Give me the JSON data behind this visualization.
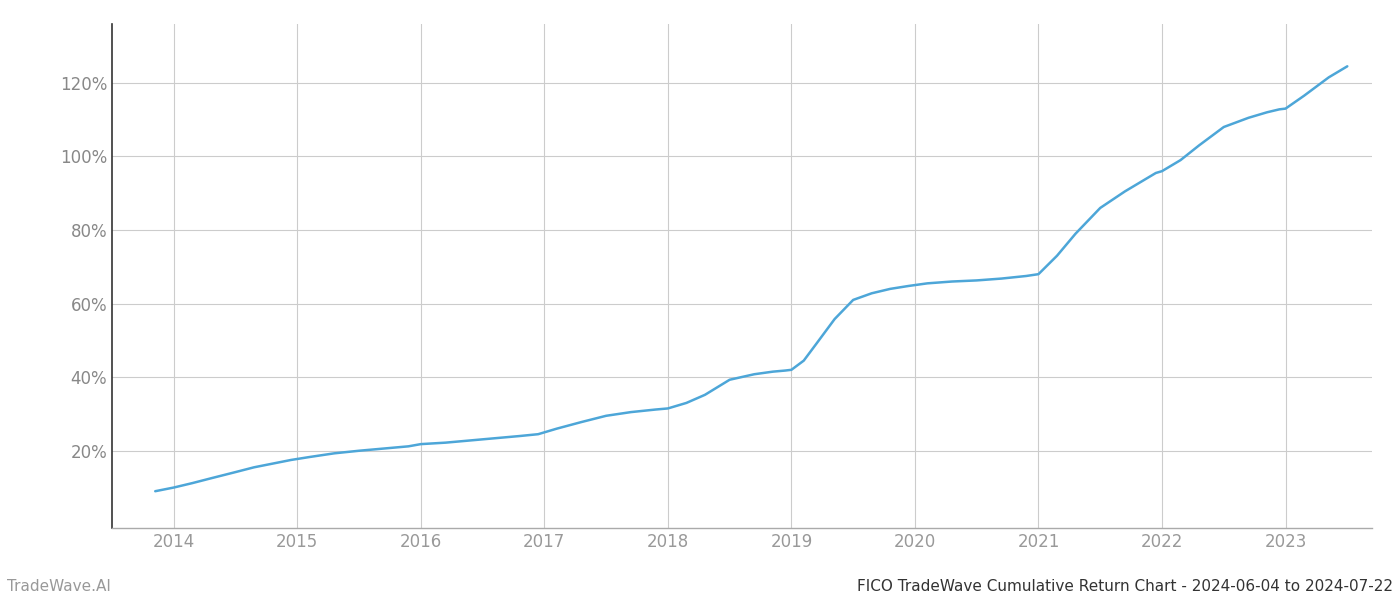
{
  "title": "FICO TradeWave Cumulative Return Chart - 2024-06-04 to 2024-07-22",
  "watermark": "TradeWave.AI",
  "line_color": "#4da6d8",
  "background_color": "#ffffff",
  "grid_color": "#cccccc",
  "x_tick_color": "#999999",
  "y_tick_color": "#888888",
  "xlabel": "",
  "ylabel": "",
  "xlim": [
    2013.5,
    2023.7
  ],
  "ylim": [
    -0.01,
    1.36
  ],
  "x_ticks": [
    2014,
    2015,
    2016,
    2017,
    2018,
    2019,
    2020,
    2021,
    2022,
    2023
  ],
  "y_ticks": [
    0.2,
    0.4,
    0.6,
    0.8,
    1.0,
    1.2
  ],
  "data_x": [
    2013.85,
    2014.0,
    2014.15,
    2014.3,
    2014.5,
    2014.65,
    2014.8,
    2014.95,
    2015.1,
    2015.3,
    2015.5,
    2015.7,
    2015.9,
    2016.0,
    2016.2,
    2016.4,
    2016.6,
    2016.8,
    2016.95,
    2017.1,
    2017.3,
    2017.5,
    2017.7,
    2017.9,
    2018.0,
    2018.15,
    2018.3,
    2018.5,
    2018.7,
    2018.85,
    2018.95,
    2019.0,
    2019.1,
    2019.2,
    2019.35,
    2019.5,
    2019.65,
    2019.8,
    2019.95,
    2020.1,
    2020.3,
    2020.5,
    2020.7,
    2020.9,
    2021.0,
    2021.15,
    2021.3,
    2021.5,
    2021.7,
    2021.85,
    2021.95,
    2022.0,
    2022.15,
    2022.3,
    2022.5,
    2022.7,
    2022.85,
    2022.95,
    2023.0,
    2023.15,
    2023.35,
    2023.5
  ],
  "data_y": [
    0.09,
    0.1,
    0.112,
    0.125,
    0.142,
    0.155,
    0.165,
    0.175,
    0.183,
    0.193,
    0.2,
    0.206,
    0.212,
    0.218,
    0.222,
    0.228,
    0.234,
    0.24,
    0.245,
    0.26,
    0.278,
    0.295,
    0.305,
    0.312,
    0.315,
    0.33,
    0.352,
    0.393,
    0.408,
    0.415,
    0.418,
    0.42,
    0.445,
    0.49,
    0.558,
    0.61,
    0.628,
    0.64,
    0.648,
    0.655,
    0.66,
    0.663,
    0.668,
    0.675,
    0.68,
    0.73,
    0.79,
    0.86,
    0.905,
    0.935,
    0.955,
    0.96,
    0.99,
    1.03,
    1.08,
    1.105,
    1.12,
    1.128,
    1.13,
    1.165,
    1.215,
    1.245
  ],
  "title_fontsize": 11,
  "watermark_fontsize": 11,
  "tick_fontsize": 12,
  "line_width": 1.8
}
